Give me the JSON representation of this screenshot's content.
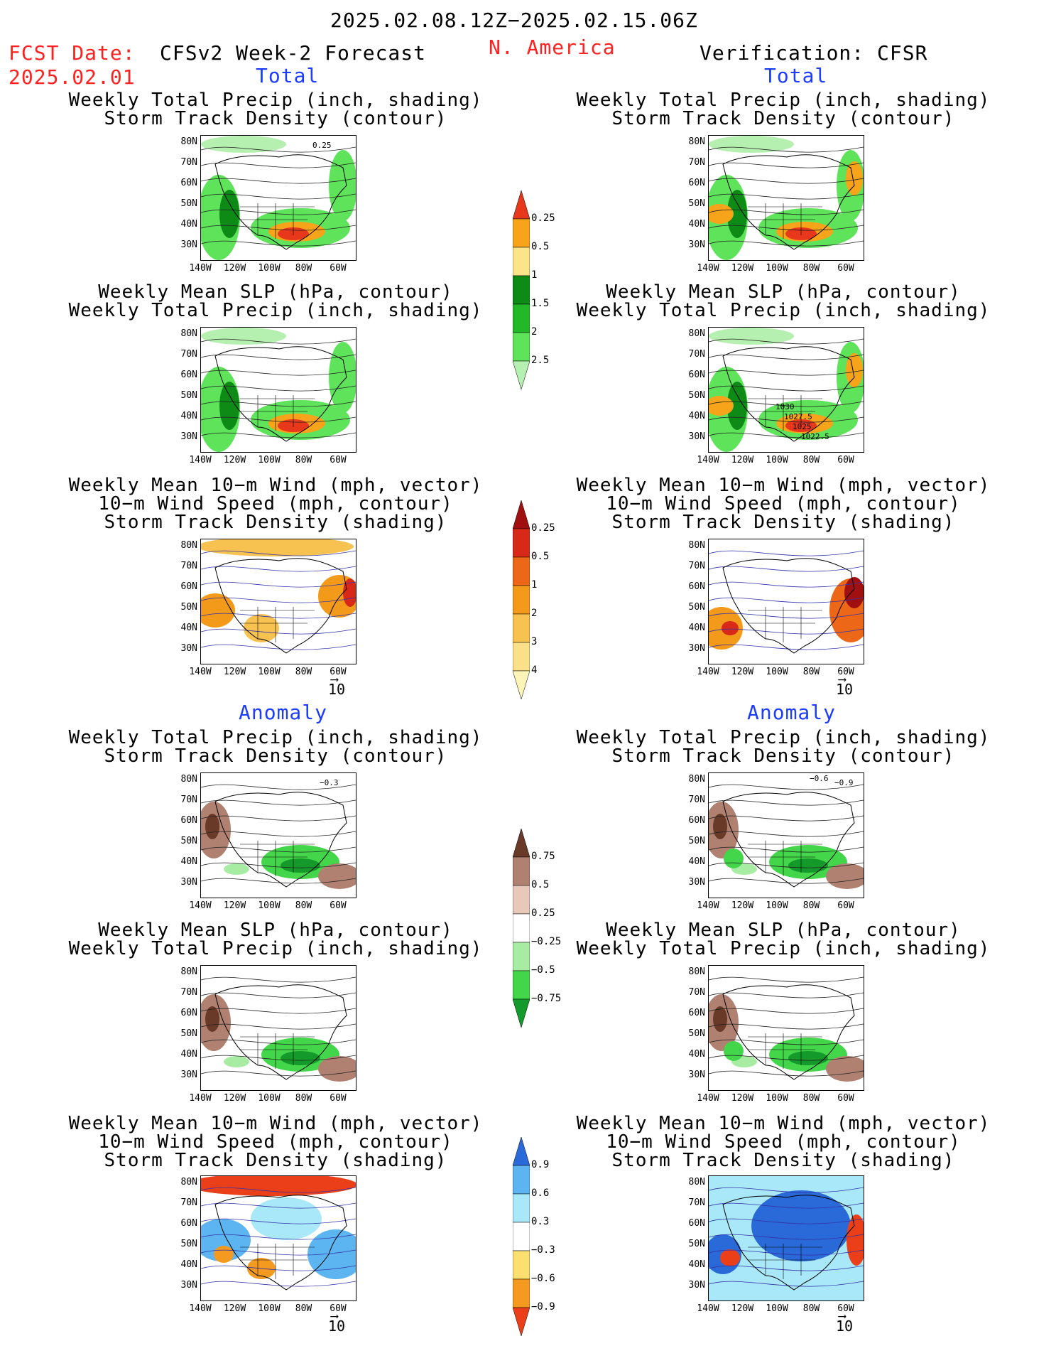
{
  "header": {
    "period": "2025.02.08.12Z−2025.02.15.06Z",
    "fcst_label": "FCST Date:",
    "fcst_date": "2025.02.01",
    "model": "CFSv2 Week-2 Forecast",
    "region": "N. America",
    "verification": "Verification: CFSR"
  },
  "sections": {
    "total": "Total",
    "anomaly": "Anomaly"
  },
  "titles": {
    "precip_storm": [
      "Weekly Total Precip (inch, shading)",
      "Storm Track Density (contour)"
    ],
    "slp_precip": [
      "Weekly Mean SLP (hPa, contour)",
      "Weekly Total Precip (inch, shading)"
    ],
    "wind_storm": [
      "Weekly Mean 10−m Wind (mph, vector)",
      "10−m Wind Speed (mph, contour)",
      "Storm Track Density (shading)"
    ]
  },
  "axes": {
    "lat": [
      "80N",
      "70N",
      "60N",
      "50N",
      "40N",
      "30N"
    ],
    "lon": [
      "140W",
      "120W",
      "100W",
      "80W",
      "60W"
    ]
  },
  "vector_scale": "10",
  "colorbars": {
    "precip_total": {
      "labels": [
        "0.25",
        "0.5",
        "1",
        "1.5",
        "2",
        "2.5"
      ],
      "colors": [
        "#b6f0b0",
        "#5ee35a",
        "#22b828",
        "#0e8a16",
        "#fbe48a",
        "#f7a41a",
        "#e8381c"
      ]
    },
    "storm_total": {
      "labels": [
        "0.25",
        "0.5",
        "1",
        "2",
        "3",
        "4"
      ],
      "colors": [
        "#fdf4b8",
        "#fbe08a",
        "#f8c250",
        "#f49a1a",
        "#ec6818",
        "#d82818",
        "#a01010"
      ]
    },
    "precip_anom": {
      "labels": [
        "0.75",
        "0.5",
        "0.25",
        "−0.25",
        "−0.5",
        "−0.75"
      ],
      "colors": [
        "#149a2a",
        "#44d64a",
        "#a8eca4",
        "#ffffff",
        "#e8c8b8",
        "#b08070",
        "#6a3a28"
      ]
    },
    "storm_anom": {
      "labels": [
        "0.9",
        "0.6",
        "0.3",
        "−0.3",
        "−0.6",
        "−0.9"
      ],
      "colors": [
        "#ea3f18",
        "#f59a20",
        "#fbe070",
        "#ffffff",
        "#a8e8f8",
        "#5cb4f0",
        "#2a6ad8"
      ]
    }
  },
  "map_annotations": {
    "fcst_precip_storm": "0.25",
    "obs_slp_labels": [
      "1030",
      "1027.5",
      "1025",
      "1022.5"
    ],
    "fcst_anom_storm": "−0.3",
    "obs_anom_storm": [
      "−0.6",
      "−0.9"
    ]
  }
}
